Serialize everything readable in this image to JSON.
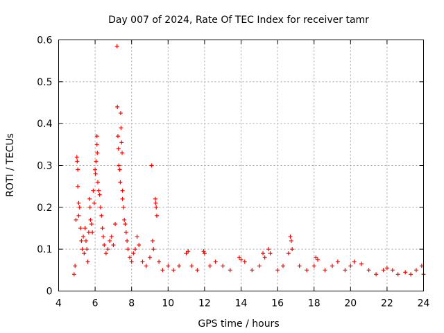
{
  "chart_data": {
    "type": "scatter",
    "title": "Day 007 of 2024, Rate Of TEC Index for receiver tamr",
    "xlabel": "GPS time / hours",
    "ylabel": "ROTI / TECUs",
    "xlim": [
      4,
      24
    ],
    "ylim": [
      0,
      0.6
    ],
    "xticks": [
      4,
      6,
      8,
      10,
      12,
      14,
      16,
      18,
      20,
      22,
      24
    ],
    "yticks": [
      0,
      0.1,
      0.2,
      0.3,
      0.4,
      0.5,
      0.6
    ],
    "xtick_labels": [
      "4",
      "6",
      "8",
      "10",
      "12",
      "14",
      "16",
      "18",
      "20",
      "22",
      "24"
    ],
    "ytick_labels": [
      "0",
      "0.1",
      "0.2",
      "0.3",
      "0.4",
      "0.5",
      "0.6"
    ],
    "grid": true,
    "marker": "+",
    "color": "#ff0000",
    "series": [
      {
        "name": "ROTI",
        "points": [
          [
            4.85,
            0.04
          ],
          [
            4.9,
            0.06
          ],
          [
            4.95,
            0.17
          ],
          [
            5.0,
            0.32
          ],
          [
            5.02,
            0.31
          ],
          [
            5.05,
            0.29
          ],
          [
            5.05,
            0.25
          ],
          [
            5.1,
            0.21
          ],
          [
            5.1,
            0.18
          ],
          [
            5.15,
            0.2
          ],
          [
            5.2,
            0.15
          ],
          [
            5.25,
            0.12
          ],
          [
            5.3,
            0.1
          ],
          [
            5.35,
            0.13
          ],
          [
            5.4,
            0.09
          ],
          [
            5.45,
            0.15
          ],
          [
            5.5,
            0.12
          ],
          [
            5.55,
            0.1
          ],
          [
            5.6,
            0.07
          ],
          [
            5.65,
            0.14
          ],
          [
            5.7,
            0.22
          ],
          [
            5.72,
            0.2
          ],
          [
            5.75,
            0.17
          ],
          [
            5.8,
            0.16
          ],
          [
            5.85,
            0.14
          ],
          [
            5.9,
            0.24
          ],
          [
            5.95,
            0.21
          ],
          [
            6.0,
            0.29
          ],
          [
            6.02,
            0.28
          ],
          [
            6.05,
            0.31
          ],
          [
            6.1,
            0.37
          ],
          [
            6.1,
            0.35
          ],
          [
            6.12,
            0.33
          ],
          [
            6.15,
            0.26
          ],
          [
            6.2,
            0.24
          ],
          [
            6.25,
            0.23
          ],
          [
            6.3,
            0.2
          ],
          [
            6.35,
            0.18
          ],
          [
            6.4,
            0.15
          ],
          [
            6.45,
            0.13
          ],
          [
            6.5,
            0.11
          ],
          [
            6.6,
            0.09
          ],
          [
            6.7,
            0.1
          ],
          [
            6.8,
            0.12
          ],
          [
            6.9,
            0.13
          ],
          [
            7.0,
            0.11
          ],
          [
            7.1,
            0.16
          ],
          [
            7.2,
            0.585
          ],
          [
            7.22,
            0.44
          ],
          [
            7.25,
            0.37
          ],
          [
            7.28,
            0.34
          ],
          [
            7.3,
            0.3
          ],
          [
            7.35,
            0.29
          ],
          [
            7.38,
            0.26
          ],
          [
            7.4,
            0.425
          ],
          [
            7.42,
            0.39
          ],
          [
            7.45,
            0.355
          ],
          [
            7.48,
            0.33
          ],
          [
            7.5,
            0.24
          ],
          [
            7.5,
            0.22
          ],
          [
            7.55,
            0.2
          ],
          [
            7.6,
            0.17
          ],
          [
            7.65,
            0.16
          ],
          [
            7.7,
            0.14
          ],
          [
            7.75,
            0.12
          ],
          [
            7.8,
            0.1
          ],
          [
            7.9,
            0.08
          ],
          [
            8.0,
            0.07
          ],
          [
            8.1,
            0.09
          ],
          [
            8.2,
            0.1
          ],
          [
            8.3,
            0.13
          ],
          [
            8.4,
            0.11
          ],
          [
            8.6,
            0.07
          ],
          [
            8.8,
            0.06
          ],
          [
            9.0,
            0.08
          ],
          [
            9.1,
            0.3
          ],
          [
            9.15,
            0.12
          ],
          [
            9.2,
            0.1
          ],
          [
            9.3,
            0.22
          ],
          [
            9.32,
            0.21
          ],
          [
            9.35,
            0.2
          ],
          [
            9.38,
            0.18
          ],
          [
            9.5,
            0.07
          ],
          [
            9.7,
            0.05
          ],
          [
            10.0,
            0.06
          ],
          [
            10.3,
            0.05
          ],
          [
            10.6,
            0.06
          ],
          [
            11.0,
            0.09
          ],
          [
            11.1,
            0.095
          ],
          [
            11.3,
            0.06
          ],
          [
            11.6,
            0.05
          ],
          [
            11.95,
            0.095
          ],
          [
            12.0,
            0.09
          ],
          [
            12.3,
            0.06
          ],
          [
            12.6,
            0.07
          ],
          [
            13.0,
            0.06
          ],
          [
            13.4,
            0.05
          ],
          [
            13.9,
            0.08
          ],
          [
            14.0,
            0.075
          ],
          [
            14.2,
            0.07
          ],
          [
            14.6,
            0.05
          ],
          [
            15.0,
            0.06
          ],
          [
            15.2,
            0.09
          ],
          [
            15.3,
            0.08
          ],
          [
            15.5,
            0.1
          ],
          [
            15.6,
            0.09
          ],
          [
            16.0,
            0.05
          ],
          [
            16.3,
            0.06
          ],
          [
            16.6,
            0.09
          ],
          [
            16.7,
            0.13
          ],
          [
            16.75,
            0.12
          ],
          [
            16.8,
            0.1
          ],
          [
            17.2,
            0.06
          ],
          [
            17.6,
            0.05
          ],
          [
            18.0,
            0.06
          ],
          [
            18.1,
            0.08
          ],
          [
            18.2,
            0.075
          ],
          [
            18.6,
            0.05
          ],
          [
            19.0,
            0.06
          ],
          [
            19.3,
            0.07
          ],
          [
            19.7,
            0.05
          ],
          [
            20.0,
            0.06
          ],
          [
            20.2,
            0.07
          ],
          [
            20.6,
            0.065
          ],
          [
            21.0,
            0.05
          ],
          [
            21.4,
            0.04
          ],
          [
            21.8,
            0.05
          ],
          [
            22.0,
            0.055
          ],
          [
            22.3,
            0.05
          ],
          [
            22.6,
            0.04
          ],
          [
            23.0,
            0.045
          ],
          [
            23.3,
            0.04
          ],
          [
            23.6,
            0.05
          ],
          [
            23.9,
            0.06
          ],
          [
            24.0,
            0.04
          ]
        ]
      }
    ]
  }
}
